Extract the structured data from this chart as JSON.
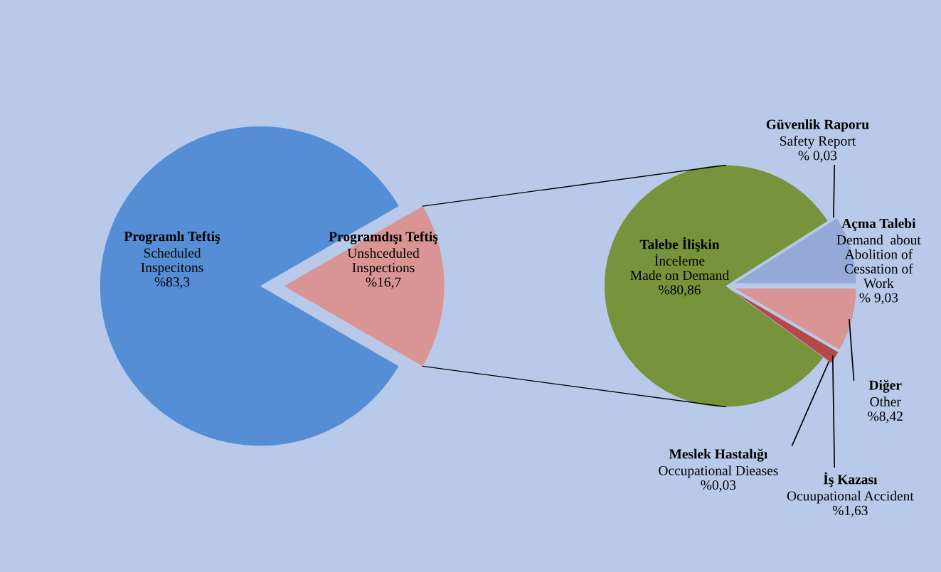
{
  "chart_data": [
    {
      "type": "pie",
      "categories": [
        "Programlı Teftiş\nScheduled\nInspecitons",
        "Programdışı Teftiş\nUnshceduled\nInspections"
      ],
      "values": [
        83.3,
        16.7
      ],
      "colors": [
        "#558ed5",
        "#d99594"
      ],
      "value_labels": [
        "%83,3",
        "%16,7"
      ]
    },
    {
      "type": "pie",
      "categories": [
        "Açma Talebi\nDemand  about\nAbolition of\nCessation of\nWork",
        "Güvenlik Raporu\nSafety Report",
        "Talebe İlişkin\nİnceleme\nMade on Demand",
        "Meslek Hastalığı\nOccupational Dieases",
        "İş Kazası\nOcuupational Accident",
        "Diğer\nOther"
      ],
      "values": [
        9.03,
        0.03,
        80.86,
        0.03,
        1.63,
        8.42
      ],
      "colors": [
        "#95a9d6",
        "#95a9d6",
        "#77933c",
        "#b24a4a",
        "#b24a4a",
        "#d99594"
      ],
      "value_labels": [
        "% 9,03",
        "% 0,03",
        "%80,86",
        "%0,03",
        "%1,63",
        "%8,42"
      ]
    }
  ]
}
